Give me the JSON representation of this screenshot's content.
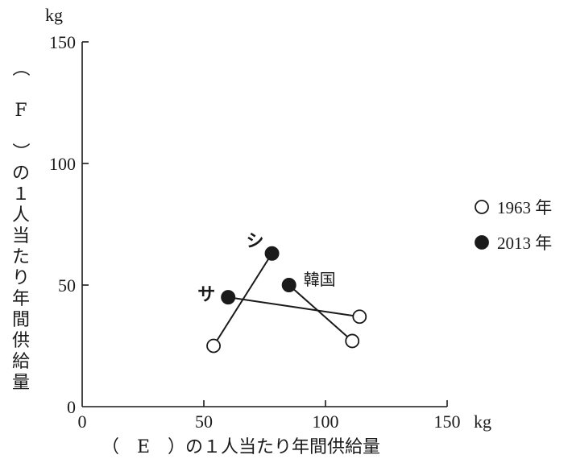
{
  "chart_data": {
    "type": "scatter",
    "y_unit": "kg",
    "x_unit": "kg",
    "xlabel": "（　E　）の１人当たり年間供給量",
    "ylabel": "（　F　）の１人当たり年間供給量",
    "xlim": [
      0,
      150
    ],
    "ylim": [
      0,
      150
    ],
    "x_ticks": [
      "0",
      "50",
      "100",
      "150"
    ],
    "y_ticks": [
      "0",
      "50",
      "100",
      "150"
    ],
    "x_tick_values": [
      0,
      50,
      100,
      150
    ],
    "y_tick_values": [
      0,
      50,
      100,
      150
    ],
    "grid": false,
    "legend_position": "right",
    "series": [
      {
        "name": "1963 年",
        "marker": "open-circle"
      },
      {
        "name": "2013 年",
        "marker": "filled-circle"
      }
    ],
    "countries": [
      {
        "label": "シ",
        "points": {
          "1963": [
            54,
            25
          ],
          "2013": [
            78,
            63
          ]
        }
      },
      {
        "label": "サ",
        "points": {
          "1963": [
            114,
            37
          ],
          "2013": [
            60,
            45
          ]
        }
      },
      {
        "label": "韓国",
        "points": {
          "1963": [
            111,
            27
          ],
          "2013": [
            85,
            50
          ]
        }
      }
    ]
  }
}
